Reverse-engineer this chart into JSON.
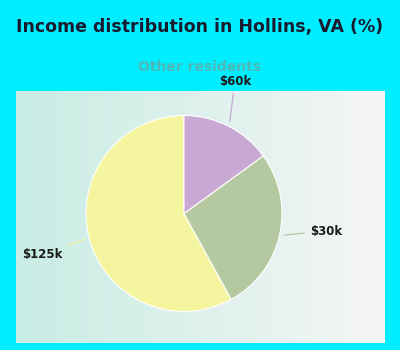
{
  "title": "Income distribution in Hollins, VA (%)",
  "subtitle": "Other residents",
  "title_color": "#1a1a2e",
  "subtitle_color": "#4db8b8",
  "bg_cyan": "#00eeff",
  "chart_bg_left": "#c8ede4",
  "chart_bg_right": "#f5f5f5",
  "slices": [
    {
      "label": "$125k",
      "value": 58,
      "color": "#f5f5a0"
    },
    {
      "label": "$30k",
      "value": 27,
      "color": "#b5c9a0"
    },
    {
      "label": "$60k",
      "value": 15,
      "color": "#c9a8d4"
    }
  ],
  "startangle": 90,
  "figsize": [
    4.0,
    3.5
  ],
  "dpi": 100
}
